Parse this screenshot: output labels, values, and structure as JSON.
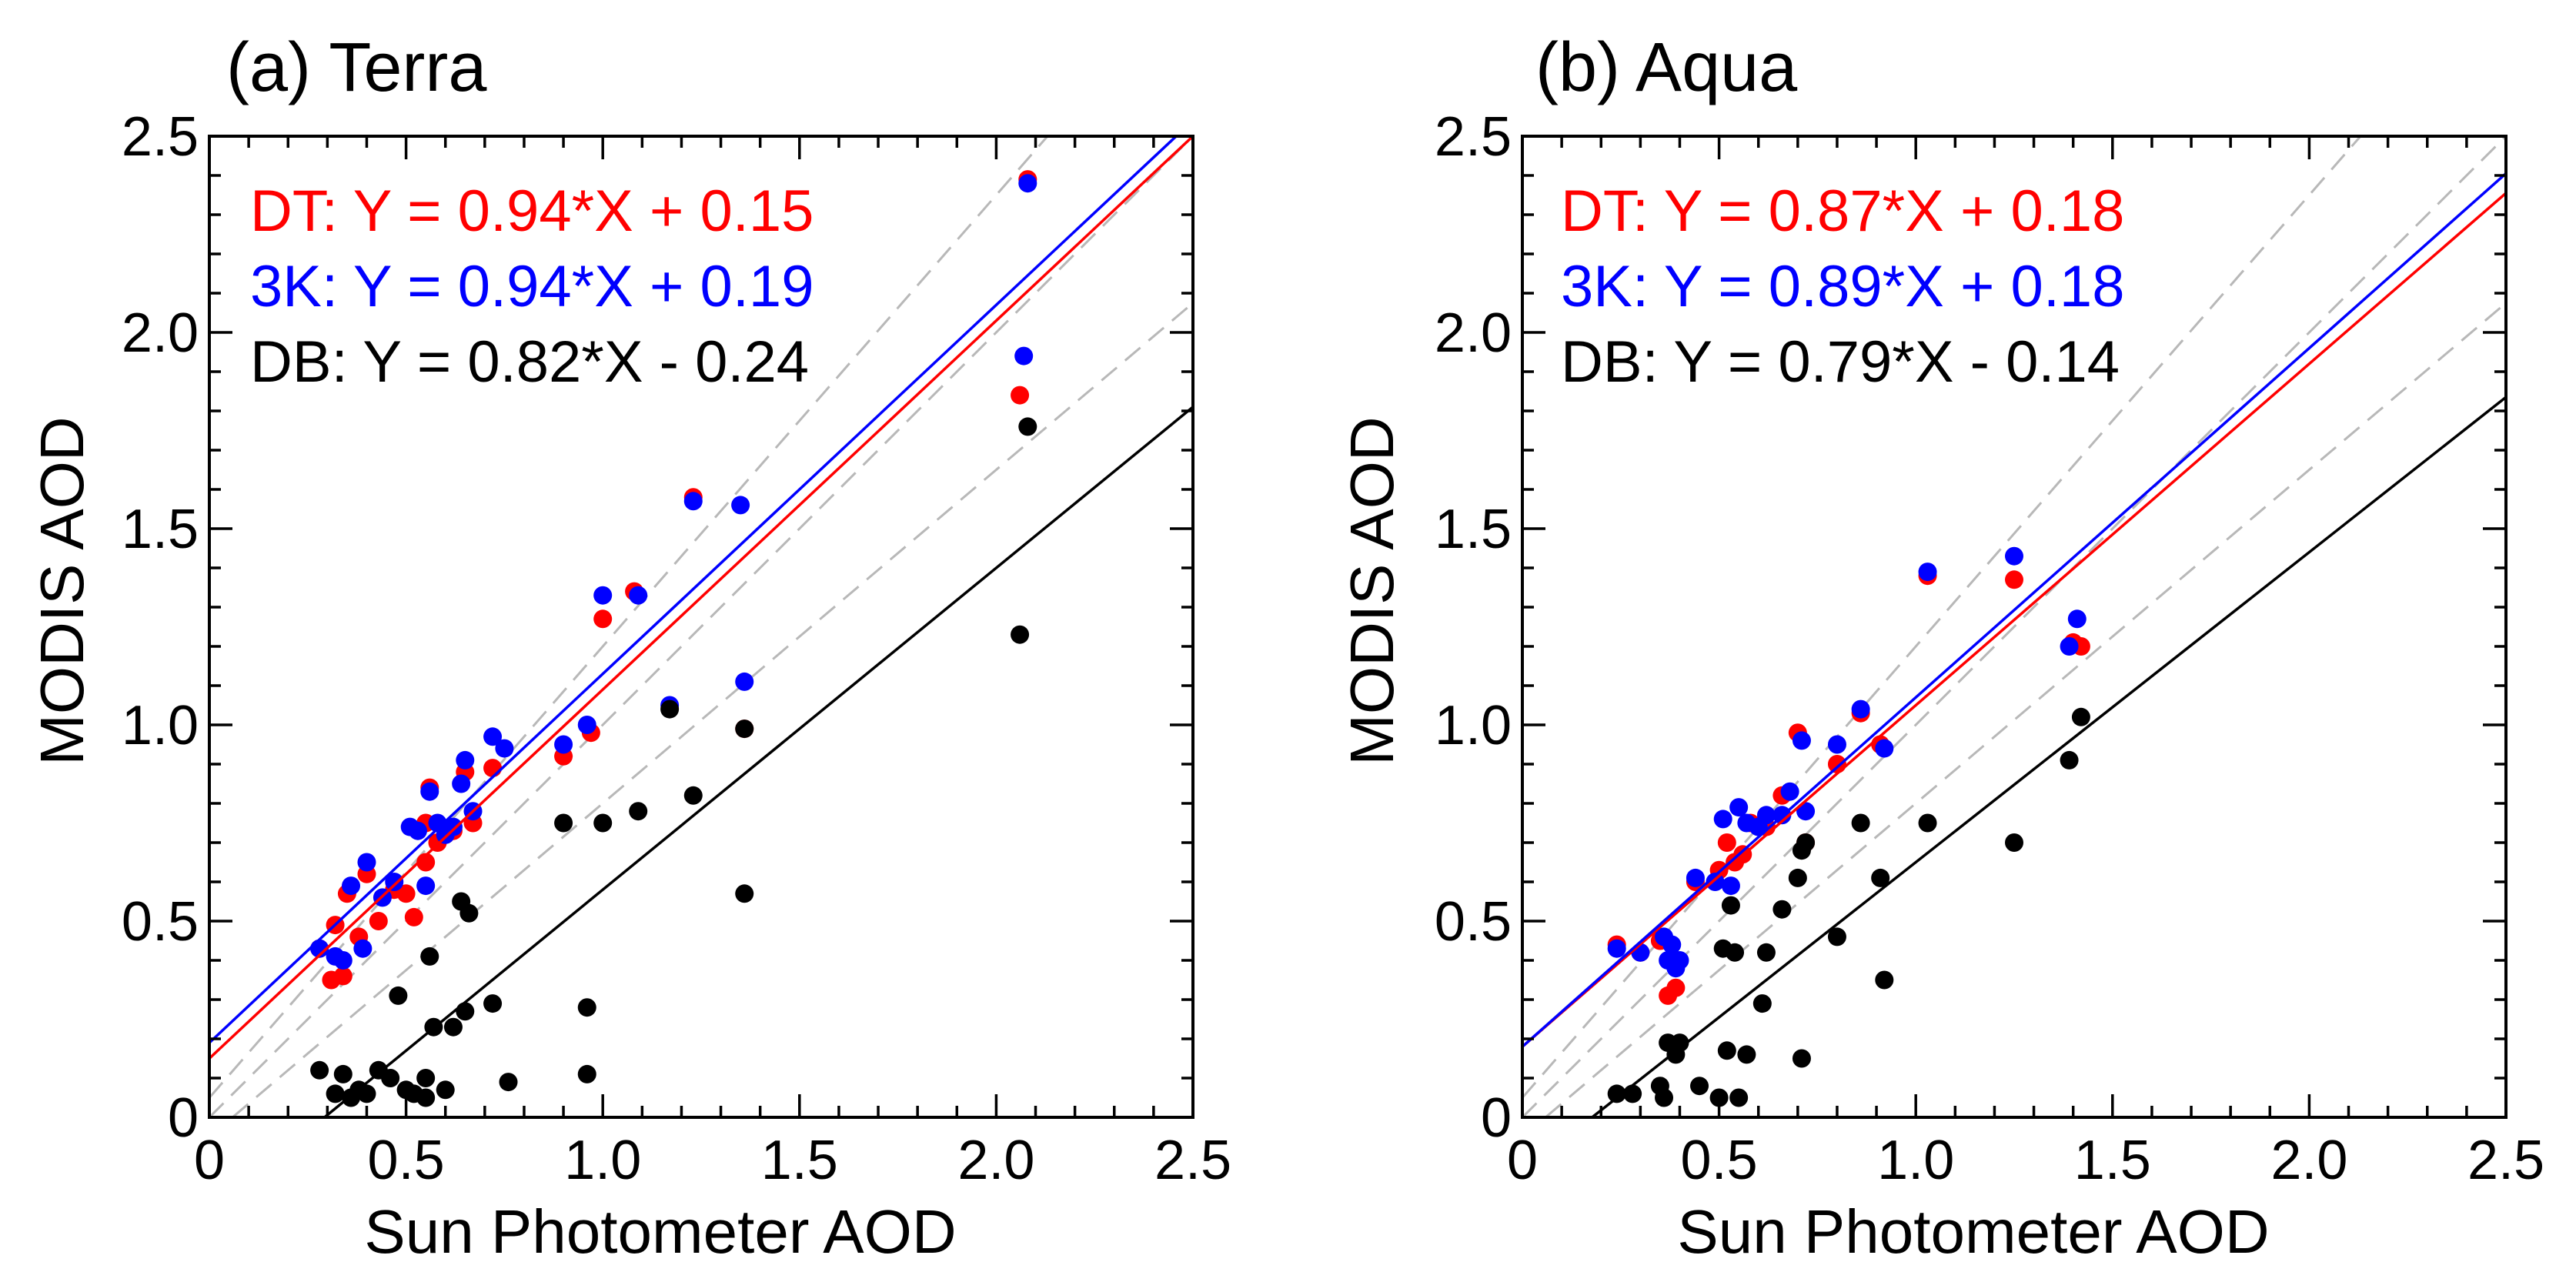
{
  "chart_data": [
    {
      "type": "scatter",
      "title": "(a) Terra",
      "xlabel": "Sun Photometer AOD",
      "ylabel": "MODIS AOD",
      "xlim": [
        0,
        2.5
      ],
      "ylim": [
        0,
        2.5
      ],
      "xticks": [
        "0",
        "0.5",
        "1.0",
        "1.5",
        "2.0",
        "2.5"
      ],
      "yticks": [
        "0",
        "0.5",
        "1.0",
        "1.5",
        "2.0",
        "2.5"
      ],
      "grid": false,
      "legend_position": "top-left",
      "reference_lines": [
        {
          "slope": 1,
          "intercept": 0
        },
        {
          "slope": 1.15,
          "intercept": 0.05
        },
        {
          "slope": 0.85,
          "intercept": -0.05
        }
      ],
      "series": [
        {
          "name": "DT",
          "color": "#ff0000",
          "equation": "DT: Y = 0.94*X + 0.15",
          "fit": {
            "slope": 0.94,
            "intercept": 0.15
          },
          "x": [
            0.28,
            0.31,
            0.32,
            0.34,
            0.35,
            0.38,
            0.4,
            0.43,
            0.47,
            0.5,
            0.52,
            0.55,
            0.55,
            0.56,
            0.58,
            0.6,
            0.62,
            0.65,
            0.67,
            0.72,
            0.9,
            0.97,
            1.0,
            1.08,
            1.23,
            1.36,
            2.06,
            2.08
          ],
          "y": [
            0.43,
            0.35,
            0.49,
            0.36,
            0.57,
            0.46,
            0.62,
            0.5,
            0.58,
            0.57,
            0.51,
            0.65,
            0.75,
            0.84,
            0.7,
            0.72,
            0.73,
            0.88,
            0.75,
            0.89,
            0.92,
            0.98,
            1.27,
            1.34,
            1.58,
            0.99,
            1.84,
            2.39
          ]
        },
        {
          "name": "3K",
          "color": "#0000ff",
          "equation": "3K: Y = 0.94*X + 0.19",
          "fit": {
            "slope": 0.94,
            "intercept": 0.19
          },
          "x": [
            0.28,
            0.32,
            0.34,
            0.36,
            0.39,
            0.4,
            0.44,
            0.47,
            0.51,
            0.53,
            0.55,
            0.56,
            0.58,
            0.6,
            0.62,
            0.64,
            0.65,
            0.67,
            0.72,
            0.75,
            0.9,
            0.96,
            1.0,
            1.09,
            1.17,
            1.23,
            1.35,
            1.36,
            2.07,
            2.08
          ],
          "y": [
            0.43,
            0.41,
            0.4,
            0.59,
            0.43,
            0.65,
            0.56,
            0.6,
            0.74,
            0.73,
            0.59,
            0.83,
            0.75,
            0.72,
            0.74,
            0.85,
            0.91,
            0.78,
            0.97,
            0.94,
            0.95,
            1.0,
            1.33,
            1.33,
            1.05,
            1.57,
            1.56,
            1.11,
            1.94,
            2.38
          ]
        },
        {
          "name": "DB",
          "color": "#000000",
          "equation": "DB: Y = 0.82*X - 0.24",
          "fit": {
            "slope": 0.82,
            "intercept": -0.24
          },
          "x": [
            0.28,
            0.32,
            0.34,
            0.36,
            0.38,
            0.4,
            0.43,
            0.46,
            0.48,
            0.5,
            0.52,
            0.55,
            0.55,
            0.56,
            0.57,
            0.6,
            0.62,
            0.64,
            0.65,
            0.66,
            0.72,
            0.76,
            0.9,
            0.96,
            0.96,
            1.0,
            1.09,
            1.17,
            1.23,
            1.36,
            1.36,
            2.06,
            2.08
          ],
          "y": [
            0.12,
            0.06,
            0.11,
            0.05,
            0.07,
            0.06,
            0.12,
            0.1,
            0.31,
            0.07,
            0.06,
            0.05,
            0.1,
            0.41,
            0.23,
            0.07,
            0.23,
            0.55,
            0.27,
            0.52,
            0.29,
            0.09,
            0.75,
            0.11,
            0.28,
            0.75,
            0.78,
            1.04,
            0.82,
            0.99,
            0.57,
            1.23,
            1.76
          ]
        }
      ]
    },
    {
      "type": "scatter",
      "title": "(b) Aqua",
      "xlabel": "Sun Photometer AOD",
      "ylabel": "MODIS AOD",
      "xlim": [
        0,
        2.5
      ],
      "ylim": [
        0,
        2.5
      ],
      "xticks": [
        "0",
        "0.5",
        "1.0",
        "1.5",
        "2.0",
        "2.5"
      ],
      "yticks": [
        "0",
        "0.5",
        "1.0",
        "1.5",
        "2.0",
        "2.5"
      ],
      "grid": false,
      "legend_position": "top-left",
      "reference_lines": [
        {
          "slope": 1,
          "intercept": 0
        },
        {
          "slope": 1.15,
          "intercept": 0.05
        },
        {
          "slope": 0.85,
          "intercept": -0.05
        }
      ],
      "series": [
        {
          "name": "DT",
          "color": "#ff0000",
          "equation": "DT: Y = 0.87*X + 0.18",
          "fit": {
            "slope": 0.87,
            "intercept": 0.18
          },
          "x": [
            0.24,
            0.3,
            0.35,
            0.37,
            0.39,
            0.44,
            0.5,
            0.52,
            0.54,
            0.56,
            0.58,
            0.62,
            0.66,
            0.7,
            0.72,
            0.8,
            0.86,
            0.91,
            1.03,
            1.25,
            1.4,
            1.42
          ],
          "y": [
            0.44,
            0.42,
            0.45,
            0.31,
            0.33,
            0.6,
            0.63,
            0.7,
            0.65,
            0.67,
            0.75,
            0.74,
            0.82,
            0.98,
            0.7,
            0.9,
            1.03,
            0.95,
            1.38,
            1.37,
            1.21,
            1.2
          ]
        },
        {
          "name": "3K",
          "color": "#0000ff",
          "equation": "3K: Y = 0.89*X + 0.18",
          "fit": {
            "slope": 0.89,
            "intercept": 0.18
          },
          "x": [
            0.24,
            0.3,
            0.36,
            0.37,
            0.38,
            0.39,
            0.4,
            0.44,
            0.49,
            0.51,
            0.53,
            0.55,
            0.57,
            0.6,
            0.62,
            0.66,
            0.68,
            0.71,
            0.72,
            0.8,
            0.86,
            0.92,
            1.03,
            1.25,
            1.39,
            1.41
          ],
          "y": [
            0.43,
            0.42,
            0.46,
            0.4,
            0.44,
            0.38,
            0.4,
            0.61,
            0.6,
            0.76,
            0.59,
            0.79,
            0.75,
            0.74,
            0.77,
            0.77,
            0.83,
            0.96,
            0.78,
            0.95,
            1.04,
            0.94,
            1.39,
            1.43,
            1.2,
            1.27
          ]
        },
        {
          "name": "DB",
          "color": "#000000",
          "equation": "DB: Y = 0.79*X - 0.14",
          "fit": {
            "slope": 0.79,
            "intercept": -0.14
          },
          "x": [
            0.24,
            0.28,
            0.35,
            0.36,
            0.37,
            0.39,
            0.4,
            0.45,
            0.5,
            0.51,
            0.52,
            0.53,
            0.54,
            0.55,
            0.57,
            0.61,
            0.62,
            0.66,
            0.7,
            0.71,
            0.71,
            0.72,
            0.8,
            0.86,
            0.91,
            0.92,
            1.03,
            1.25,
            1.39,
            1.42
          ],
          "y": [
            0.06,
            0.06,
            0.08,
            0.05,
            0.19,
            0.16,
            0.19,
            0.08,
            0.05,
            0.43,
            0.17,
            0.54,
            0.42,
            0.05,
            0.16,
            0.29,
            0.42,
            0.53,
            0.61,
            0.15,
            0.68,
            0.7,
            0.46,
            0.75,
            0.61,
            0.35,
            0.75,
            0.7,
            0.91,
            1.02
          ]
        }
      ]
    }
  ]
}
